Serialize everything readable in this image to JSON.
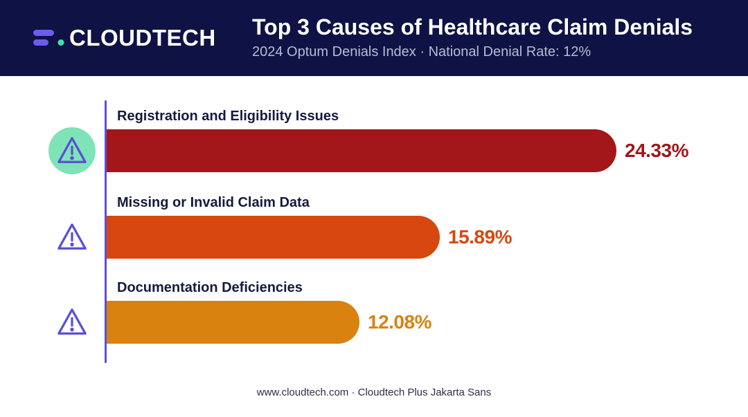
{
  "header": {
    "brand": "CLOUDTECH",
    "title": "Top 3 Causes of Healthcare Claim Denials",
    "subtitle": "2024 Optum Denials Index · National Denial Rate: 12%"
  },
  "footer": {
    "text": "www.cloudtech.com · Cloudtech Plus Jakarta Sans"
  },
  "colors": {
    "header_bg": "#0f1244",
    "brand_purple": "#6b5cf0",
    "brand_teal": "#3fe0b0",
    "axis": "#5b4fd6",
    "icon_highlight": "#7fe3b8"
  },
  "chart_data": {
    "type": "bar",
    "orientation": "horizontal",
    "title": "Top 3 Causes of Healthcare Claim Denials",
    "categories": [
      "Registration and Eligibility Issues",
      "Missing or Invalid Claim Data",
      "Documentation Deficiencies"
    ],
    "values": [
      24.33,
      15.89,
      12.08
    ],
    "value_labels": [
      "24.33%",
      "15.89%",
      "12.08%"
    ],
    "bar_colors": [
      "#a3161a",
      "#d6480f",
      "#d9820f"
    ],
    "icons": [
      "warning-triangle-icon",
      "warning-triangle-icon",
      "warning-triangle-icon"
    ],
    "highlighted_index": 0,
    "unit": "%",
    "grid": false,
    "legend": "none"
  }
}
